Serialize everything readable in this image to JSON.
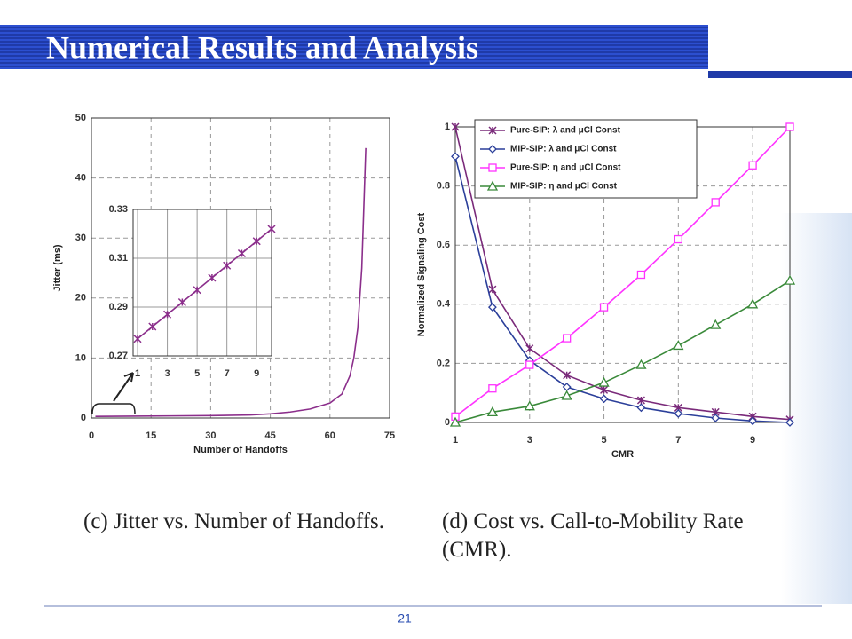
{
  "slide": {
    "title": "Numerical Results and Analysis",
    "page_number": "21"
  },
  "captions": [
    "(c) Jitter vs. Number of Handoffs.",
    "(d) Cost vs. Call-to-Mobility Rate (CMR)."
  ],
  "chart_data": [
    {
      "type": "line",
      "x_label": "Number of Handoffs",
      "y_label": "Jitter (ms)",
      "xlim": [
        0,
        75
      ],
      "xticks": [
        0,
        15,
        30,
        45,
        60,
        75
      ],
      "ylim": [
        0,
        50
      ],
      "yticks": [
        0,
        10,
        20,
        30,
        40,
        50
      ],
      "grid": true,
      "series": [
        {
          "color": "#8b2e8b",
          "marker": "none",
          "x": [
            1,
            10,
            20,
            30,
            40,
            45,
            50,
            55,
            60,
            63,
            65,
            66,
            67,
            68,
            69
          ],
          "values": [
            0.27,
            0.3,
            0.35,
            0.4,
            0.5,
            0.7,
            1.0,
            1.5,
            2.5,
            4,
            7,
            10,
            15,
            25,
            45
          ]
        }
      ]
    },
    {
      "type": "line",
      "xlim": [
        0.7,
        10
      ],
      "xticks": [
        1,
        3,
        5,
        7,
        9
      ],
      "ylim": [
        0.27,
        0.33
      ],
      "yticks": [
        0.27,
        0.29,
        0.31,
        0.33
      ],
      "grid": true,
      "series": [
        {
          "color": "#8b2e8b",
          "marker": "cross",
          "x": [
            1,
            2,
            3,
            4,
            5,
            6,
            7,
            8,
            9,
            10
          ],
          "values": [
            0.277,
            0.282,
            0.287,
            0.292,
            0.297,
            0.302,
            0.307,
            0.312,
            0.317,
            0.322
          ]
        }
      ]
    },
    {
      "type": "line",
      "x_label": "CMR",
      "y_label": "Normalized Signaling Cost",
      "x": [
        1,
        2,
        3,
        4,
        5,
        6,
        7,
        8,
        9,
        10
      ],
      "xlim": [
        1,
        10
      ],
      "xticks": [
        1,
        3,
        5,
        7,
        9
      ],
      "ylim": [
        0,
        1
      ],
      "yticks": [
        0,
        0.2,
        0.4,
        0.6,
        0.8,
        1
      ],
      "grid": true,
      "legend": "top-left",
      "series": [
        {
          "name": "Pure-SIP: λ and μCl Const",
          "color": "#7a2a7a",
          "marker": "cross",
          "values": [
            1,
            0.45,
            0.25,
            0.16,
            0.11,
            0.075,
            0.05,
            0.035,
            0.02,
            0.01
          ]
        },
        {
          "name": "MIP-SIP: λ and μCl Const",
          "color": "#2b3f9a",
          "marker": "diamond",
          "values": [
            0.9,
            0.39,
            0.21,
            0.12,
            0.08,
            0.05,
            0.03,
            0.015,
            0.005,
            0
          ]
        },
        {
          "name": "Pure-SIP: η and μCl Const",
          "color": "#ff33ff",
          "marker": "square",
          "values": [
            0.02,
            0.115,
            0.195,
            0.285,
            0.39,
            0.5,
            0.62,
            0.745,
            0.87,
            1.0
          ]
        },
        {
          "name": "MIP-SIP: η and μCl Const",
          "color": "#3a8a3a",
          "marker": "triangle",
          "values": [
            0,
            0.035,
            0.055,
            0.09,
            0.135,
            0.195,
            0.26,
            0.33,
            0.4,
            0.48
          ]
        }
      ]
    }
  ]
}
